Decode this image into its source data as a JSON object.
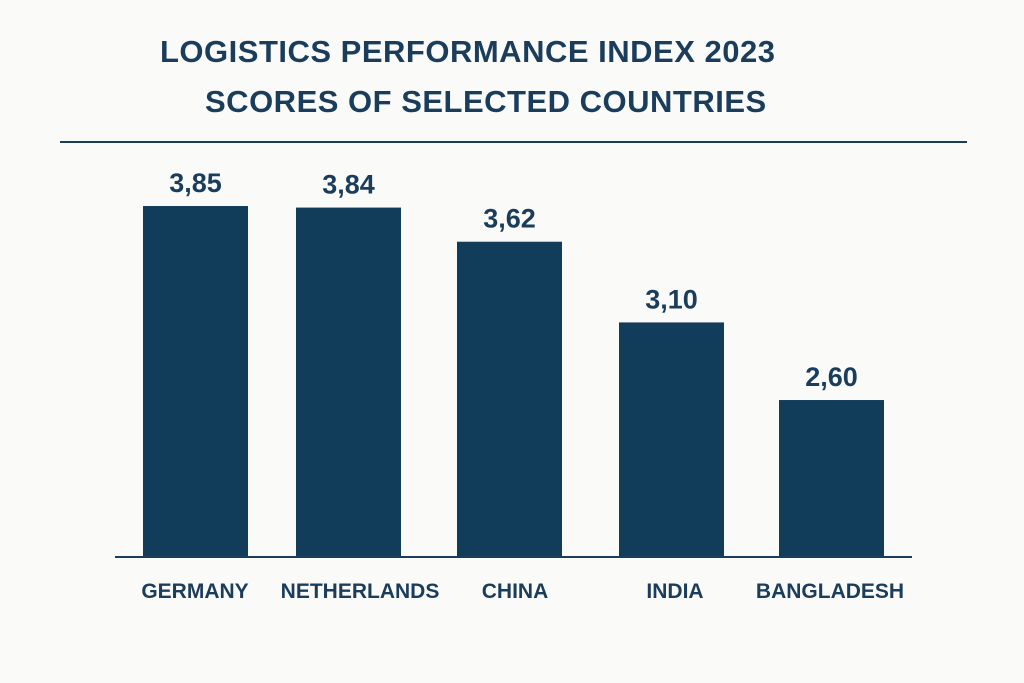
{
  "chart_data": {
    "type": "bar",
    "title": "LOGISTICS PERFORMANCE INDEX 2023",
    "subtitle": "SCORES OF SELECTED COUNTRIES",
    "categories": [
      "GERMANY",
      "NETHERLANDS",
      "CHINA",
      "INDIA",
      "BANGLADESH"
    ],
    "values": [
      3.85,
      3.84,
      3.62,
      3.1,
      2.6
    ],
    "value_labels": [
      "3,85",
      "3,84",
      "3,62",
      "3,10",
      "2,60"
    ],
    "xlabel": "",
    "ylabel": "",
    "grid": false,
    "bar_color": "#123d5a",
    "text_color": "#1a3d5c"
  }
}
